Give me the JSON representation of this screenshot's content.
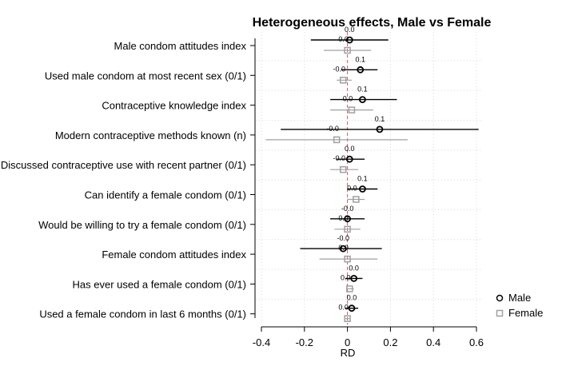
{
  "chart_data": {
    "type": "coefficient-plot",
    "title": "Heterogeneous effects, Male vs Female",
    "xlabel": "RD",
    "xlim": [
      -0.4,
      0.6
    ],
    "xticks": [
      -0.4,
      -0.2,
      0,
      0.2,
      0.4,
      0.6
    ],
    "xtick_labels": [
      "-0.4",
      "-0.2",
      "0",
      "0.2",
      "0.4",
      "0.6"
    ],
    "reference_line": 0,
    "grid": true,
    "legend_position": "right",
    "categories": [
      "Male condom attitudes index",
      "Used male condom at most recent sex (0/1)",
      "Contraceptive knowledge index",
      "Modern contraceptive methods known (n)",
      "Discussed contraceptive use with recent partner (0/1)",
      "Can identify a female condom (0/1)",
      "Would be willing to try a female condom (0/1)",
      "Female condom attitudes index",
      "Has ever used a female condom (0/1)",
      "Used a female condom in last 6 months (0/1)"
    ],
    "series": [
      {
        "name": "Male",
        "color": "#000000",
        "marker": "circle",
        "estimates": [
          0.01,
          0.06,
          0.07,
          0.15,
          0.01,
          0.07,
          0.0,
          -0.02,
          0.03,
          0.02
        ],
        "ci_low": [
          -0.17,
          -0.03,
          -0.08,
          -0.31,
          -0.05,
          0.0,
          -0.08,
          -0.22,
          -0.01,
          -0.01
        ],
        "ci_high": [
          0.19,
          0.14,
          0.23,
          0.61,
          0.08,
          0.14,
          0.08,
          0.16,
          0.07,
          0.05
        ],
        "labels": [
          "0.0",
          "0.1",
          "0.1",
          "0.1",
          "0.0",
          "0.1",
          "-0.0",
          "-0.0",
          "0.0",
          "0.0"
        ]
      },
      {
        "name": "Female",
        "color": "#a0a0a0",
        "marker": "square",
        "estimates": [
          0.0,
          -0.02,
          0.02,
          -0.05,
          -0.02,
          0.04,
          0.0,
          0.0,
          0.01,
          0.0
        ],
        "ci_low": [
          -0.11,
          -0.05,
          -0.08,
          -0.38,
          -0.08,
          0.0,
          -0.06,
          -0.13,
          0.0,
          -0.01
        ],
        "ci_high": [
          0.11,
          0.02,
          0.12,
          0.28,
          0.05,
          0.08,
          0.06,
          0.14,
          0.03,
          0.01
        ],
        "labels": [
          "0.0",
          "-0.0",
          "0.0",
          "-0.0",
          "-0.0",
          "0.0",
          "0.0",
          "0.0",
          "0.0",
          "0.0"
        ]
      }
    ]
  }
}
